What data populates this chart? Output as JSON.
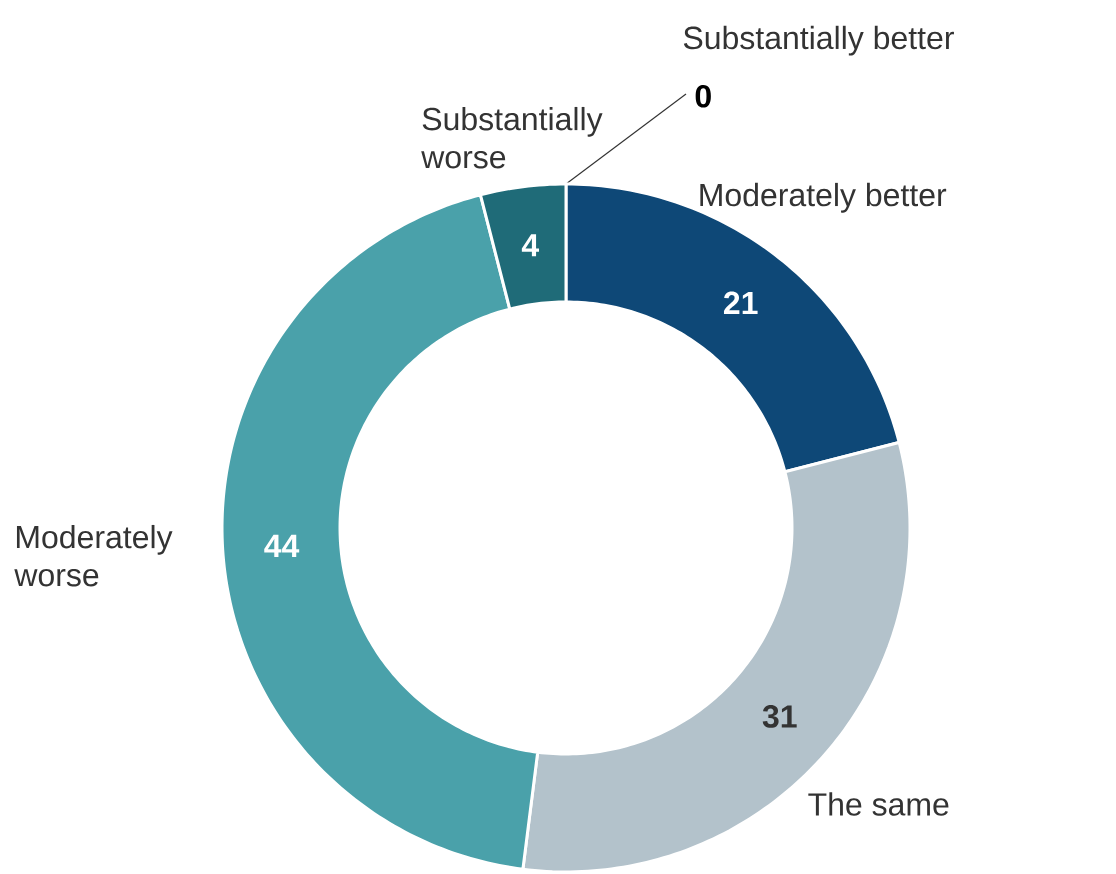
{
  "chart_data": {
    "type": "donut",
    "categories": [
      "Substantially better",
      "Moderately better",
      "The same",
      "Moderately worse",
      "Substantially worse"
    ],
    "values": [
      0,
      21,
      31,
      44,
      4
    ],
    "colors": [
      "#0b3d63",
      "#0e4877",
      "#b3c2cb",
      "#4aa1aa",
      "#1f6b78"
    ],
    "value_labels": [
      "0",
      "21",
      "31",
      "44",
      "4"
    ]
  }
}
